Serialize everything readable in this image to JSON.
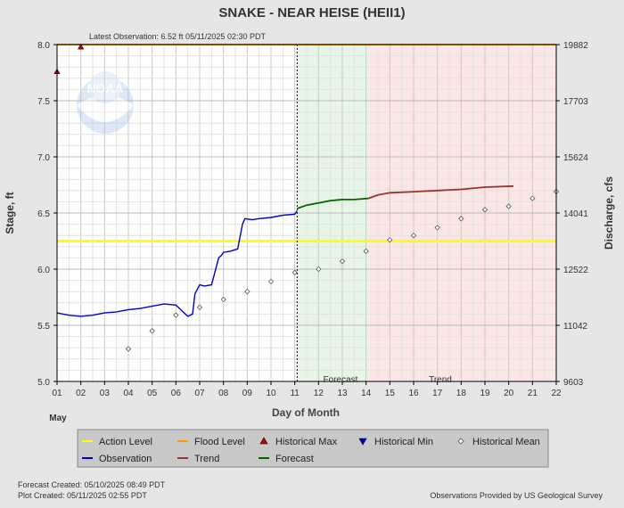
{
  "chart_data": {
    "type": "line",
    "title": "SNAKE - NEAR HEISE  (HEII1)",
    "latest_observation": "Latest Observation: 6.52 ft 05/11/2025 02:30 PDT",
    "xlabel": "Day of Month",
    "month_label": "May",
    "ylabel": "Stage, ft",
    "y2label": "Discharge, cfs",
    "xlim": [
      1,
      22
    ],
    "ylim": [
      5.0,
      8.0
    ],
    "x_ticks": [
      "01",
      "02",
      "03",
      "04",
      "05",
      "06",
      "07",
      "08",
      "09",
      "10",
      "11",
      "12",
      "13",
      "14",
      "15",
      "16",
      "17",
      "18",
      "19",
      "20",
      "21",
      "22"
    ],
    "y_ticks": [
      "5.0",
      "5.5",
      "6.0",
      "6.5",
      "7.0",
      "7.5",
      "8.0"
    ],
    "y_tick_values": [
      5.0,
      5.5,
      6.0,
      6.5,
      7.0,
      7.5,
      8.0
    ],
    "y2_ticks": [
      "9603",
      "11042",
      "12522",
      "14041",
      "15624",
      "17703",
      "19882"
    ],
    "grid": true,
    "colors": {
      "observation": "#0000cc",
      "forecast": "#006600",
      "trend": "#993333",
      "action_level": "#ffff00",
      "flood_level": "#ff9900",
      "hist_max": "#cc0000",
      "hist_min": "#0000cc",
      "forecast_region": "#e6f5e6",
      "trend_region": "#fbe6e6"
    },
    "action_level": 6.25,
    "flood_level": 8.0,
    "now_x": 11.1,
    "forecast_region": [
      11.1,
      14.1
    ],
    "trend_region": [
      14.1,
      22.0
    ],
    "region_labels": {
      "forecast": "Forecast",
      "trend": "Trend"
    },
    "series": [
      {
        "name": "Observation",
        "x": [
          1.0,
          1.5,
          2.0,
          2.5,
          3.0,
          3.5,
          4.0,
          4.5,
          5.0,
          5.5,
          6.0,
          6.3,
          6.5,
          6.7,
          6.8,
          6.9,
          7.0,
          7.2,
          7.5,
          7.8,
          7.9,
          8.0,
          8.3,
          8.6,
          8.8,
          8.9,
          9.2,
          9.5,
          10.0,
          10.5,
          11.0,
          11.1
        ],
        "y": [
          5.61,
          5.59,
          5.58,
          5.59,
          5.61,
          5.62,
          5.64,
          5.65,
          5.67,
          5.69,
          5.68,
          5.62,
          5.58,
          5.6,
          5.78,
          5.82,
          5.86,
          5.85,
          5.86,
          6.1,
          6.12,
          6.15,
          6.16,
          6.18,
          6.4,
          6.45,
          6.44,
          6.45,
          6.46,
          6.48,
          6.49,
          6.52
        ]
      },
      {
        "name": "Forecast",
        "x": [
          11.1,
          11.5,
          12.0,
          12.5,
          13.0,
          13.5,
          14.1
        ],
        "y": [
          6.54,
          6.57,
          6.59,
          6.61,
          6.62,
          6.62,
          6.63
        ]
      },
      {
        "name": "Trend",
        "x": [
          14.1,
          14.5,
          15.0,
          16.0,
          17.0,
          18.0,
          19.0,
          20.2
        ],
        "y": [
          6.63,
          6.66,
          6.68,
          6.69,
          6.7,
          6.71,
          6.73,
          6.74
        ]
      },
      {
        "name": "Historical Mean",
        "x": [
          4.0,
          5.0,
          6.0,
          7.0,
          8.0,
          9.0,
          10.0,
          11.0,
          12.0,
          13.0,
          14.0,
          15.0,
          16.0,
          17.0,
          18.0,
          19.0,
          20.0,
          21.0,
          22.0
        ],
        "y": [
          5.29,
          5.45,
          5.59,
          5.66,
          5.73,
          5.8,
          5.89,
          5.97,
          6.0,
          6.07,
          6.16,
          6.26,
          6.3,
          6.37,
          6.45,
          6.53,
          6.56,
          6.63,
          6.69
        ]
      },
      {
        "name": "Historical Max",
        "x": [
          1.0,
          2.0
        ],
        "y": [
          7.76,
          7.98
        ]
      }
    ],
    "legend": {
      "placement": "bottom",
      "items": [
        {
          "label": "Action Level",
          "kind": "line",
          "color": "#ffff00"
        },
        {
          "label": "Flood Level",
          "kind": "line",
          "color": "#ff9900"
        },
        {
          "label": "Historical Max",
          "kind": "tri-up",
          "color": "#cc0000"
        },
        {
          "label": "Historical Min",
          "kind": "tri-down",
          "color": "#0000cc"
        },
        {
          "label": "Historical Mean",
          "kind": "diamond",
          "color": "#ffffff"
        },
        {
          "label": "Observation",
          "kind": "line",
          "color": "#0000cc"
        },
        {
          "label": "Trend",
          "kind": "line",
          "color": "#993333"
        },
        {
          "label": "Forecast",
          "kind": "line",
          "color": "#006600"
        }
      ]
    }
  },
  "footer": {
    "forecast_created": "Forecast Created: 05/10/2025 08:49 PDT",
    "plot_created": "Plot Created: 05/11/2025 02:55 PDT",
    "provider": "Observations Provided by US Geological Survey"
  },
  "watermark": {
    "text": "NOAA"
  }
}
